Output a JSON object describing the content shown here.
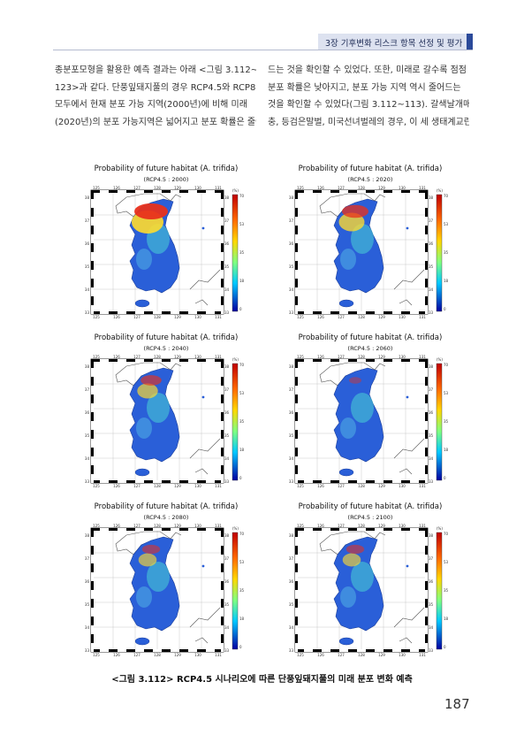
{
  "header": {
    "text": "3장 기후변화 리스크 항목 선정 및 평가",
    "accent": "#2b4a9a"
  },
  "body": {
    "left_lines": [
      "종분포모형을 활용한 예측 결과는 아래 <그림 3.112~",
      "123>과 같다. 단풍잎돼지풀의 경우 RCP4.5와 RCP8.5",
      "모두에서 현재 분포 가능 지역(2000년)에 비해 미래",
      "(2020년)의 분포 가능지역은 넓어지고 분포 확률은 줄어"
    ],
    "right_lines": [
      "드는 것을 확인할 수 있었다. 또한, 미래로 갈수록 점점",
      "분포 확률은 낮아지고, 분포 가능 지역 역시 줄어드는",
      "것을 확인할 수 있었다(그림 3.112~113). 갈색날개매미",
      "충, 등검은말벌, 미국선녀벌레의 경우, 이 세 생태계교란"
    ]
  },
  "figure": {
    "panels": [
      {
        "title": "Probability of future habitat (A. trifida)",
        "subtitle": "(RCP4.5 : 2000)",
        "hot": 1.0
      },
      {
        "title": "Probability of future habitat (A. trifida)",
        "subtitle": "(RCP4.5 : 2020)",
        "hot": 0.75
      },
      {
        "title": "Probability of future habitat (A. trifida)",
        "subtitle": "(RCP4.5 : 2040)",
        "hot": 0.55
      },
      {
        "title": "Probability of future habitat (A. trifida)",
        "subtitle": "(RCP4.5 : 2060)",
        "hot": 0.25
      },
      {
        "title": "Probability of future habitat (A. trifida)",
        "subtitle": "(RCP4.5 : 2080)",
        "hot": 0.45
      },
      {
        "title": "Probability of future habitat (A. trifida)",
        "subtitle": "(RCP4.5 : 2100)",
        "hot": 0.45
      }
    ],
    "lon_ticks": [
      "125",
      "126",
      "127",
      "128",
      "129",
      "130",
      "131"
    ],
    "lat_ticks": [
      "38",
      "37",
      "36",
      "35",
      "34",
      "33"
    ],
    "colorbar_unit": "(%)",
    "colorbar_ticks": [
      "70",
      "53",
      "35",
      "18",
      "0"
    ],
    "caption": "<그림 3.112> RCP4.5 시나리오에 따른 단풍잎돼지풀의 미래 분포 변화 예측"
  },
  "page_number": "187"
}
